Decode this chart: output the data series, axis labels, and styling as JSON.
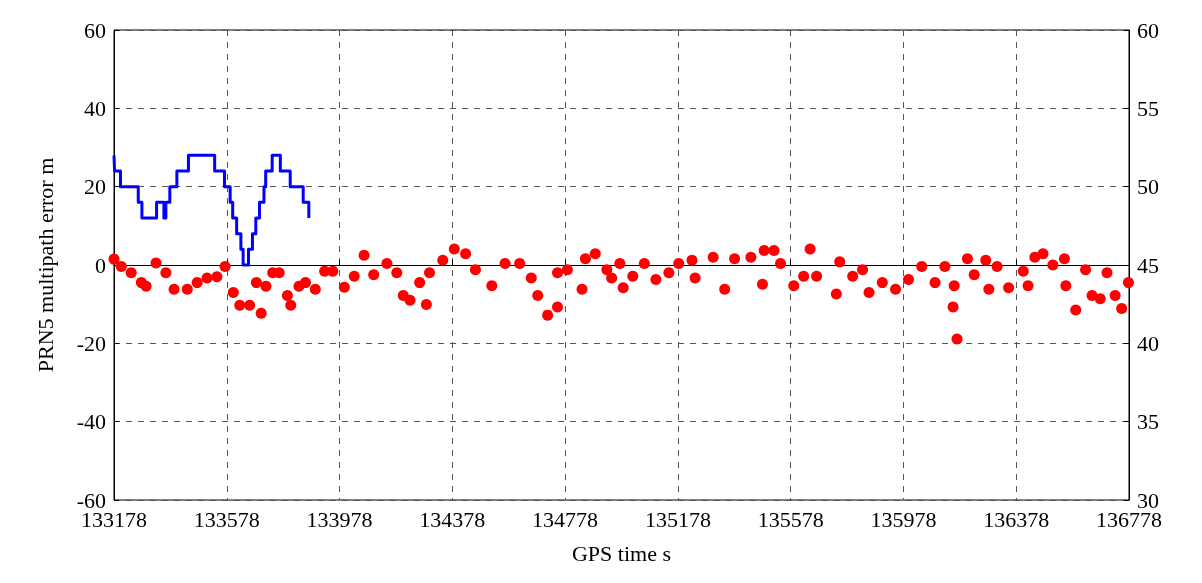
{
  "chart_data": {
    "type": "scatter",
    "xlabel": "GPS time s",
    "ylabel": "PRN5 multipath error m",
    "xlim": [
      133178,
      136778
    ],
    "xticks": [
      133178,
      133578,
      133978,
      134378,
      134778,
      135178,
      135578,
      135978,
      136378,
      136778
    ],
    "ylim": [
      -60,
      60
    ],
    "yticks": [
      -60,
      -40,
      -20,
      0,
      20,
      40,
      60
    ],
    "y2lim": [
      30,
      60
    ],
    "y2ticks": [
      30,
      35,
      40,
      45,
      50,
      55,
      60
    ],
    "grid": true,
    "series": [
      {
        "color": "#ff0000",
        "marker": "circle",
        "x": [
          133178,
          133204,
          133239,
          133275,
          133292,
          133327,
          133362,
          133391,
          133438,
          133473,
          133508,
          133543,
          133572,
          133601,
          133624,
          133659,
          133683,
          133700,
          133717,
          133741,
          133764,
          133793,
          133805,
          133834,
          133857,
          133892,
          133925,
          133954,
          133995,
          134030,
          134065,
          134099,
          134146,
          134181,
          134204,
          134228,
          134262,
          134286,
          134297,
          134344,
          134385,
          134425,
          134460,
          134518,
          134565,
          134617,
          134658,
          134681,
          134716,
          134751,
          134751,
          134786,
          134838,
          134850,
          134885,
          134926,
          134943,
          134972,
          134984,
          135018,
          135059,
          135100,
          135146,
          135181,
          135228,
          135239,
          135303,
          135344,
          135379,
          135437,
          135478,
          135484,
          135519,
          135542,
          135589,
          135624,
          135647,
          135670,
          135740,
          135752,
          135798,
          135833,
          135856,
          135903,
          135950,
          135996,
          136043,
          136090,
          136125,
          136154,
          136158,
          136168,
          136205,
          136229,
          136270,
          136281,
          136310,
          136351,
          136403,
          136420,
          136444,
          136473,
          136508,
          136549,
          136554,
          136589,
          136624,
          136647,
          136676,
          136700,
          136729,
          136752,
          136776
        ],
        "values": [
          1.5,
          -0.4,
          -2,
          -4.5,
          -5.4,
          0.5,
          -2,
          -6.2,
          -6.2,
          -4.5,
          -3.3,
          -3,
          -0.4,
          -7,
          -10.3,
          -10.3,
          -4.5,
          -12.3,
          -5.4,
          -2,
          -2,
          -7.8,
          -10.3,
          -5.4,
          -4.5,
          -6.2,
          -1.6,
          -1.6,
          -5.7,
          -2.9,
          2.5,
          -2.5,
          0.4,
          -2,
          -7.8,
          -9,
          -4.5,
          -10.1,
          -2,
          1.2,
          4.1,
          2.9,
          -1.2,
          -5.3,
          0.4,
          0.4,
          -3.3,
          -7.8,
          -12.8,
          -10.7,
          -2,
          -1.2,
          -6.2,
          1.6,
          2.9,
          -1.2,
          -3.3,
          0.4,
          -5.8,
          -2.9,
          0.4,
          -3.7,
          -2,
          0.4,
          1.2,
          -3.3,
          2,
          -6.2,
          1.6,
          2,
          -4.9,
          3.7,
          3.7,
          0.4,
          -5.3,
          -2.9,
          4.1,
          -2.9,
          -7.4,
          0.8,
          -2.9,
          -1.2,
          -7,
          -4.5,
          -6.2,
          -3.7,
          -0.4,
          -4.5,
          -0.4,
          -10.7,
          -5.3,
          -18.9,
          1.6,
          -2.5,
          1.2,
          -6.2,
          -0.4,
          -5.8,
          -1.6,
          -5.3,
          2,
          2.9,
          0,
          1.6,
          -5.3,
          -11.5,
          -1.2,
          -7.8,
          -8.6,
          -2,
          -7.8,
          -11.1,
          -4.5
        ]
      },
      {
        "type": "step",
        "axis": "y2",
        "color": "#0000ff",
        "marker": "none",
        "line_style": "solid",
        "x": [
          133178,
          133180,
          133201,
          133264,
          133277,
          133329,
          133355,
          133362,
          133376,
          133401,
          133442,
          133535,
          133570,
          133590,
          133599,
          133613,
          133628,
          133636,
          133655,
          133669,
          133681,
          133694,
          133710,
          133716,
          133739,
          133768,
          133803,
          133849,
          133869
        ],
        "values": [
          52,
          51,
          50,
          49,
          48,
          49,
          48,
          49,
          50,
          51,
          52,
          51,
          50,
          49,
          48,
          47,
          46,
          45,
          46,
          47,
          48,
          49,
          50,
          51,
          52,
          51,
          50,
          49,
          48
        ]
      }
    ]
  }
}
